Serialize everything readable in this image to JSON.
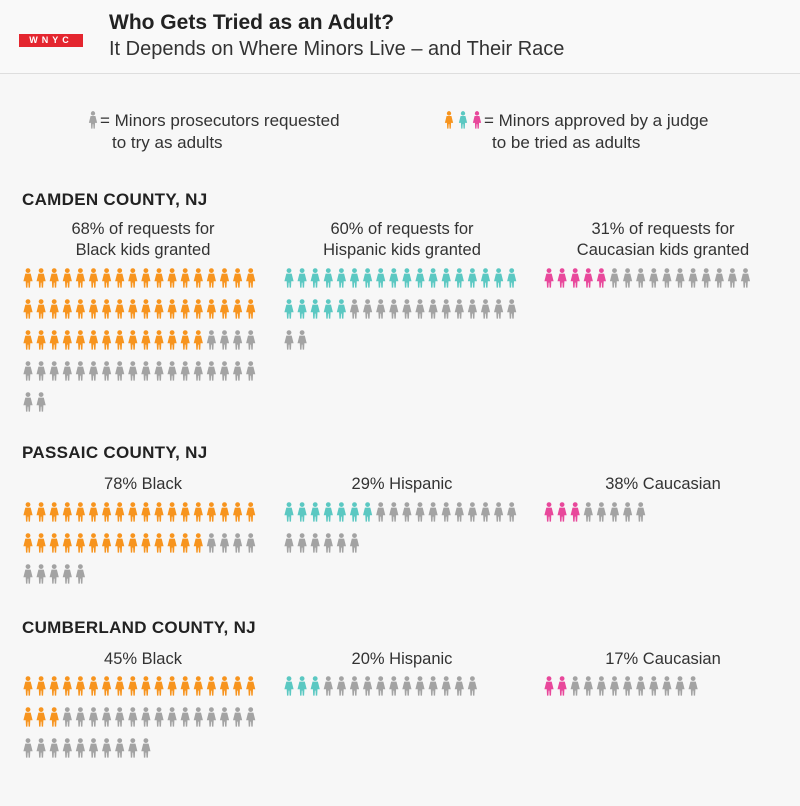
{
  "header": {
    "logo_text": "WNYC",
    "title": "Who Gets Tried as an Adult?",
    "subtitle": "It Depends on Where Minors Live – and Their Race"
  },
  "legend": {
    "requested_line1": "= Minors prosecutors requested",
    "requested_line2": "to try as adults",
    "approved_line1": "= Minors approved by a judge",
    "approved_line2": "to be tried as adults"
  },
  "colors": {
    "requested": "#a3a3a3",
    "black": "#f7941e",
    "hispanic": "#5bc8c2",
    "caucasian": "#e8489b"
  },
  "icon": "person-icon",
  "chart_data": [
    {
      "type": "pictogram",
      "county": "CAMDEN COUNTY, NJ",
      "groups": [
        {
          "race": "Black",
          "label_line1": "68% of requests for",
          "label_line2": "Black kids granted",
          "requested": 74,
          "approved": 50,
          "percent_granted": 68
        },
        {
          "race": "Hispanic",
          "label_line1": "60% of requests for",
          "label_line2": "Hispanic kids granted",
          "requested": 38,
          "approved": 23,
          "percent_granted": 60
        },
        {
          "race": "Caucasian",
          "label_line1": "31% of requests for",
          "label_line2": "Caucasian  kids granted",
          "requested": 16,
          "approved": 5,
          "percent_granted": 31
        }
      ]
    },
    {
      "type": "pictogram",
      "county": "PASSAIC COUNTY, NJ",
      "groups": [
        {
          "race": "Black",
          "label_line1": "78% Black",
          "label_line2": "",
          "requested": 41,
          "approved": 32,
          "percent_granted": 78
        },
        {
          "race": "Hispanic",
          "label_line1": "29% Hispanic",
          "label_line2": "",
          "requested": 24,
          "approved": 7,
          "percent_granted": 29
        },
        {
          "race": "Caucasian",
          "label_line1": "38% Caucasian",
          "label_line2": "",
          "requested": 8,
          "approved": 3,
          "percent_granted": 38
        }
      ]
    },
    {
      "type": "pictogram",
      "county": "CUMBERLAND COUNTY, NJ",
      "groups": [
        {
          "race": "Black",
          "label_line1": "45% Black",
          "label_line2": "",
          "requested": 46,
          "approved": 21,
          "percent_granted": 45
        },
        {
          "race": "Hispanic",
          "label_line1": "20% Hispanic",
          "label_line2": "",
          "requested": 15,
          "approved": 3,
          "percent_granted": 20
        },
        {
          "race": "Caucasian",
          "label_line1": "17% Caucasian",
          "label_line2": "",
          "requested": 12,
          "approved": 2,
          "percent_granted": 17
        }
      ]
    }
  ]
}
